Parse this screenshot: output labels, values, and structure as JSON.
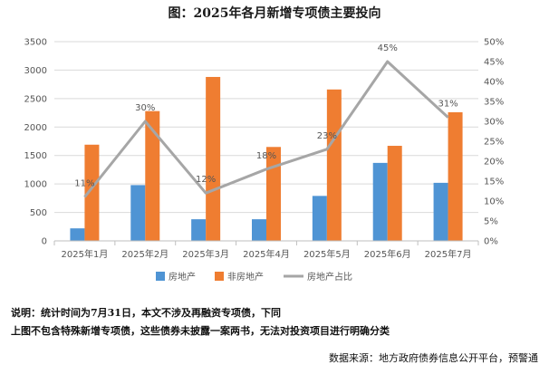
{
  "title": "图：2025年各月新增专项债主要投向",
  "notes": {
    "line1": "说明：统计时间为7月31日，本文不涉及再融资专项债，下同",
    "line2": "上图不包含特殊新增专项债，这些债券未披露一案两书，无法对投资项目进行明确分类"
  },
  "source": "数据来源：地方政府债券信息公开平台，预警通",
  "chart_data": {
    "type": "bar",
    "title": "图：2025年各月新增专项债主要投向",
    "categories": [
      "2025年1月",
      "2025年2月",
      "2025年3月",
      "2025年4月",
      "2025年5月",
      "2025年6月",
      "2025年7月"
    ],
    "series": [
      {
        "name": "房地产",
        "type": "bar",
        "axis": "left",
        "color": "#4f94d4",
        "values": [
          220,
          980,
          380,
          380,
          790,
          1370,
          1020
        ]
      },
      {
        "name": "非房地产",
        "type": "bar",
        "axis": "left",
        "color": "#ef7d31",
        "values": [
          1690,
          2280,
          2880,
          1650,
          2660,
          1670,
          2260
        ]
      },
      {
        "name": "房地产占比",
        "type": "line",
        "axis": "right",
        "color": "#a6a6a6",
        "values": [
          11,
          30,
          12,
          18,
          23,
          45,
          31
        ],
        "labels": [
          "11%",
          "30%",
          "12%",
          "18%",
          "23%",
          "45%",
          "31%"
        ]
      }
    ],
    "y_left": {
      "min": 0,
      "max": 3500,
      "ticks": [
        "0",
        "500",
        "1000",
        "1500",
        "2000",
        "2500",
        "3000",
        "3500"
      ]
    },
    "y_right": {
      "min": 0,
      "max": 50,
      "ticks": [
        "0%",
        "5%",
        "10%",
        "15%",
        "20%",
        "25%",
        "30%",
        "35%",
        "40%",
        "45%",
        "50%"
      ]
    },
    "grid": true,
    "legend": "bottom"
  }
}
